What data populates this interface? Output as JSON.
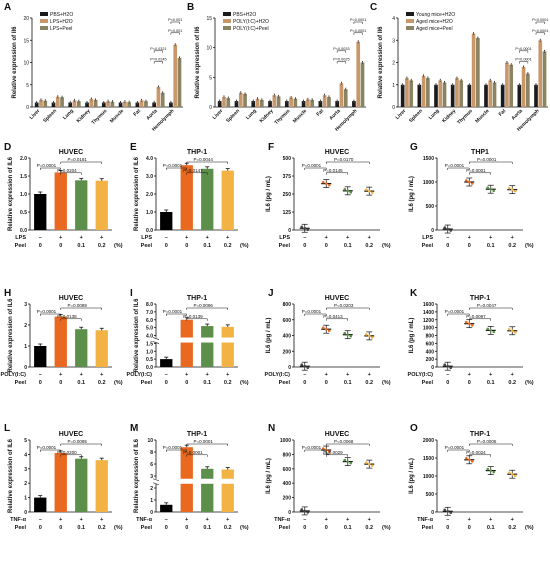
{
  "panel_letters": {
    "A": "A",
    "B": "B",
    "C": "C",
    "D": "D",
    "E": "E",
    "F": "F",
    "G": "G",
    "H": "H",
    "I": "I",
    "J": "J",
    "K": "K",
    "L": "L",
    "M": "M",
    "N": "N",
    "O": "O"
  },
  "shared": {
    "ylabel_il6_rel": "Relative expression of IL6",
    "ylabel_il6_pg": "IL6 (pg / mL)",
    "peel_row_label": "Peel",
    "peel_ticks": [
      "0",
      "0",
      "0.1",
      "0.2"
    ],
    "percent_unit": "(%)",
    "stim_ticks": [
      "–",
      "+",
      "+",
      "+"
    ],
    "peel_minus": "–",
    "tissues": [
      "Liver",
      "Spleen",
      "Lung",
      "Kidney",
      "Thymus",
      "Muscle",
      "Fat",
      "Aorta",
      "Hemolymph"
    ],
    "colors": {
      "control": "#000000",
      "stim": "#e8691f",
      "peel01": "#5b8f4a",
      "peel02": "#f2b344",
      "tiss_ctrl": "#1a1a1a",
      "tiss_stim": "#c9986a",
      "tiss_peel": "#8a8462"
    }
  },
  "chart_data": [
    {
      "panel": "A",
      "type": "bar",
      "xlabel": "",
      "ylabel": "Relative expression of Il6",
      "ylim": [
        0,
        20
      ],
      "yticks": [
        "0",
        "5",
        "10",
        "15",
        "20"
      ],
      "categories": [
        "Liver",
        "Spleen",
        "Lung",
        "Kidney",
        "Thymus",
        "Muscle",
        "Fat",
        "Aorta",
        "Hemolymph"
      ],
      "series": [
        {
          "name": "PBS+H2O",
          "values": [
            1,
            1,
            1,
            1,
            1,
            1,
            1,
            1,
            1
          ]
        },
        {
          "name": "LPS+H2O",
          "values": [
            1.6,
            2.3,
            1.5,
            1.8,
            1.3,
            1.2,
            1.5,
            4.5,
            14
          ]
        },
        {
          "name": "LPS+Peel",
          "values": [
            1.4,
            2.2,
            1.3,
            1.6,
            1.2,
            1.1,
            1.3,
            3.2,
            11
          ]
        }
      ],
      "annotations": [
        "P<0.001",
        "P<0.001",
        "P=0.0321",
        "P=0.0245"
      ]
    },
    {
      "panel": "B",
      "type": "bar",
      "xlabel": "",
      "ylabel": "Relative expression of Il6",
      "ylim": [
        0,
        15
      ],
      "yticks": [
        "0",
        "5",
        "10",
        "15"
      ],
      "categories": [
        "Liver",
        "Spleen",
        "Lung",
        "Kidney",
        "Thymus",
        "Muscle",
        "Fat",
        "Aorta",
        "Hemolymph"
      ],
      "series": [
        {
          "name": "PBS+H2O",
          "values": [
            1,
            1,
            1,
            1,
            1,
            1,
            1,
            1,
            1
          ]
        },
        {
          "name": "POLY(I:C)+H2O",
          "values": [
            1.7,
            2.4,
            1.4,
            2.0,
            1.6,
            1.3,
            2.0,
            4.0,
            11
          ]
        },
        {
          "name": "POLY(I:C)+Peel",
          "values": [
            1.5,
            2.2,
            1.2,
            1.8,
            1.4,
            1.2,
            1.7,
            3.0,
            7.5
          ]
        }
      ],
      "annotations": [
        "P=0.0001",
        "P=0.0001",
        "P=0.0033",
        "P=0.0025"
      ]
    },
    {
      "panel": "C",
      "type": "bar",
      "xlabel": "",
      "ylabel": "Relative expression of Il6",
      "ylim": [
        0,
        4
      ],
      "yticks": [
        "0",
        "1",
        "2",
        "3",
        "4"
      ],
      "categories": [
        "Liver",
        "Spleen",
        "Lung",
        "Kidney",
        "Thymus",
        "Muscle",
        "Fat",
        "Aorta",
        "Hemolymph"
      ],
      "series": [
        {
          "name": "Young mice+H2O",
          "values": [
            1,
            1,
            1,
            1,
            1,
            1,
            1,
            1,
            1
          ]
        },
        {
          "name": "Aged mice+H2O",
          "values": [
            1.3,
            1.4,
            1.2,
            1.3,
            3.3,
            1.2,
            2.0,
            1.8,
            3.0
          ]
        },
        {
          "name": "Aged mice+Peel",
          "values": [
            1.2,
            1.3,
            1.1,
            1.2,
            3.1,
            1.1,
            1.9,
            1.5,
            2.5
          ]
        }
      ],
      "annotations": [
        "P=0.0001",
        "P=0.0001",
        "P=0.0001",
        "P=0.0001"
      ]
    },
    {
      "panel": "D",
      "type": "bar",
      "title": "HUVEC",
      "ylabel": "Relative expression of IL6",
      "ylim": [
        0,
        2.0
      ],
      "yticks": [
        "0.0",
        "0.5",
        "1.0",
        "1.5",
        "2.0"
      ],
      "stim_label": "LPS",
      "values": [
        1.0,
        1.6,
        1.38,
        1.37
      ],
      "annotations": [
        "P=0.0001",
        "P=0.0204",
        "P=0.0181"
      ]
    },
    {
      "panel": "E",
      "type": "bar",
      "title": "THP-1",
      "ylabel": "Relative expression of IL6",
      "ylim": [
        0,
        4.0
      ],
      "yticks": [
        "0.0",
        "1.0",
        "2.0",
        "3.0",
        "4.0"
      ],
      "stim_label": "LPS",
      "values": [
        1.0,
        3.6,
        3.4,
        3.3
      ],
      "annotations": [
        "P=0.0001",
        "P=0.0147",
        "P=0.0044"
      ]
    },
    {
      "panel": "F",
      "type": "scatter-bar",
      "title": "HUVEC",
      "ylabel": "IL6 (pg / mL)",
      "ylim": [
        0,
        500
      ],
      "yticks": [
        "0",
        "125",
        "250",
        "375",
        "500"
      ],
      "stim_label": "LPS",
      "values": [
        12,
        322,
        272,
        270
      ],
      "annotations": [
        "P=0.0001",
        "P=0.0145",
        "P=0.0170"
      ]
    },
    {
      "panel": "G",
      "type": "scatter-bar",
      "title": "THP1",
      "ylabel": "IL6 (pg / mL)",
      "ylim": [
        0,
        1500
      ],
      "yticks": [
        "0",
        "500",
        "1000",
        "1500"
      ],
      "stim_label": "LPS",
      "values": [
        20,
        1000,
        850,
        840
      ],
      "annotations": [
        "P=0.0001",
        "P=0.0001",
        "P=0.0001"
      ]
    },
    {
      "panel": "H",
      "type": "bar",
      "title": "HUVEC",
      "ylabel": "Relative expression of IL6",
      "ylim": [
        0,
        3.0
      ],
      "yticks": [
        "0",
        "1",
        "2",
        "3"
      ],
      "stim_label": "POLY(I:C)",
      "values": [
        1.0,
        2.4,
        1.8,
        1.75
      ],
      "annotations": [
        "P=0.0001",
        "P=0.0138",
        "P=0.0089"
      ]
    },
    {
      "panel": "I",
      "type": "bar",
      "title": "THP-1",
      "ylabel": "Relative expression of IL6",
      "ylim": [
        0,
        8.0
      ],
      "yticks": [
        "0.0",
        "0.5",
        "1.0",
        "1.5",
        "4.0",
        "5.0",
        "6.0",
        "7.0",
        "8.0"
      ],
      "stim_label": "POLY(I:C)",
      "values": [
        1.0,
        6.0,
        5.2,
        5.1
      ],
      "annotations": [
        "P=0.0001",
        "P=0.0139",
        "P=0.0096"
      ]
    },
    {
      "panel": "J",
      "type": "scatter-bar",
      "title": "HUVEC",
      "ylabel": "IL6 (pg / mL)",
      "ylim": [
        0,
        800
      ],
      "yticks": [
        "0",
        "200",
        "400",
        "600",
        "800"
      ],
      "stim_label": "POLY(I:C)",
      "values": [
        10,
        480,
        410,
        395
      ],
      "annotations": [
        "P=0.0001",
        "P=0.0413",
        "P=0.0203"
      ]
    },
    {
      "panel": "K",
      "type": "scatter-bar",
      "title": "THP-1",
      "ylabel": "IL6 (pg / mL)",
      "ylim": [
        0,
        1600
      ],
      "yticks": [
        "0",
        "200",
        "400",
        "600",
        "800",
        "1000",
        "1200",
        "1400",
        "1600"
      ],
      "stim_label": "POLY(I:C)",
      "values": [
        20,
        1100,
        930,
        920
      ],
      "annotations": [
        "P=0.0001",
        "P=0.0097",
        "P=0.0047"
      ]
    },
    {
      "panel": "L",
      "type": "bar",
      "title": "HUVEC",
      "ylabel": "Relative expression of IL6",
      "ylim": [
        0,
        5.0
      ],
      "yticks": [
        "0",
        "1",
        "2",
        "3",
        "4",
        "5"
      ],
      "stim_label": "TNF-α",
      "values": [
        1.0,
        4.1,
        3.7,
        3.6
      ],
      "annotations": [
        "P=0.0001",
        "P=0.0200",
        "P=0.0095"
      ]
    },
    {
      "panel": "M",
      "type": "bar",
      "title": "THP-1",
      "ylabel": "Relative expression of IL6",
      "ylim": [
        0,
        10.0
      ],
      "yticks": [
        "0",
        "1",
        "2",
        "3",
        "6",
        "8",
        "10"
      ],
      "stim_label": "TNF-α",
      "values": [
        1.0,
        9.0,
        6.0,
        5.9
      ],
      "annotations": [
        "P=0.0001",
        "P=0.0001",
        "P=0.0001"
      ]
    },
    {
      "panel": "N",
      "type": "scatter-bar",
      "title": "HUVEC",
      "ylabel": "IL6 (pg / mL)",
      "ylim": [
        0,
        1000
      ],
      "yticks": [
        "0",
        "200",
        "400",
        "600",
        "800",
        "1000"
      ],
      "stim_label": "TNF-α",
      "values": [
        15,
        860,
        700,
        665
      ],
      "annotations": [
        "P=0.0001",
        "P=0.0029",
        "P=0.0068"
      ]
    },
    {
      "panel": "O",
      "type": "scatter-bar",
      "title": "THP-1",
      "ylabel": "IL6 (pg / mL)",
      "ylim": [
        0,
        2000
      ],
      "yticks": [
        "0",
        "500",
        "1000",
        "1500",
        "2000"
      ],
      "stim_label": "TNF-α",
      "values": [
        20,
        1450,
        1150,
        1050
      ],
      "annotations": [
        "P=0.0001",
        "P=0.0024",
        "P=0.0005"
      ]
    }
  ]
}
